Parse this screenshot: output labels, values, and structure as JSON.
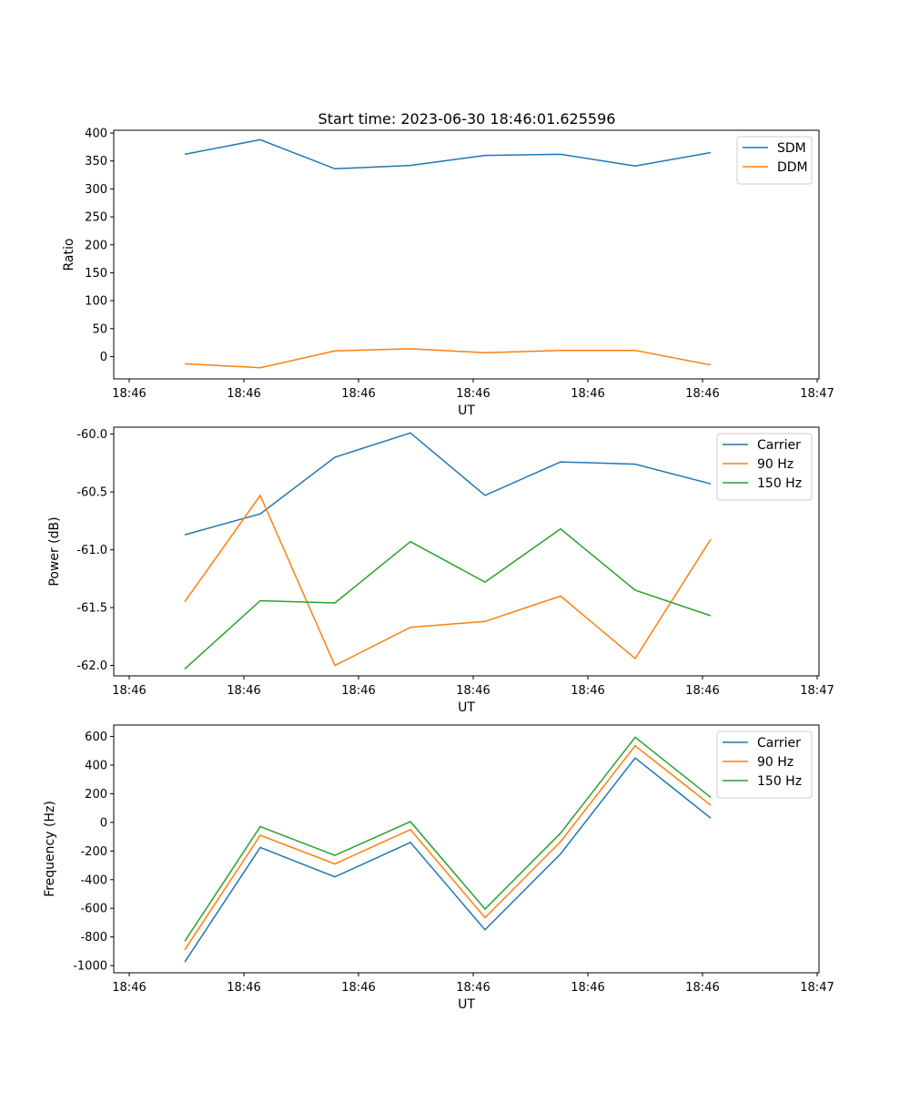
{
  "title": "Start time: 2023-06-30 18:46:01.625596",
  "colors": {
    "blue": "#1f77b4",
    "orange": "#ff7f0e",
    "green": "#2ca02c"
  },
  "chart_data": [
    {
      "type": "line",
      "ylabel": "Ratio",
      "xlabel": "UT",
      "x_ticks": [
        "18:46",
        "18:46",
        "18:46",
        "18:46",
        "18:46",
        "18:46",
        "18:47"
      ],
      "ylim": [
        -40,
        405
      ],
      "y_ticks": [
        0,
        50,
        100,
        150,
        200,
        250,
        300,
        350,
        400
      ],
      "legend": "top-right",
      "series": [
        {
          "name": "SDM",
          "color": "#1f77b4",
          "values": [
            362,
            388,
            336,
            342,
            360,
            362,
            341,
            365
          ]
        },
        {
          "name": "DDM",
          "color": "#ff7f0e",
          "values": [
            -13,
            -20,
            10,
            14,
            7,
            11,
            11,
            -15
          ]
        }
      ]
    },
    {
      "type": "line",
      "ylabel": "Power (dB)",
      "xlabel": "UT",
      "x_ticks": [
        "18:46",
        "18:46",
        "18:46",
        "18:46",
        "18:46",
        "18:46",
        "18:47"
      ],
      "ylim": [
        -62.09,
        -59.94
      ],
      "y_ticks": [
        -60.0,
        -60.5,
        -61.0,
        -61.5,
        -62.0
      ],
      "legend": "top-right",
      "series": [
        {
          "name": "Carrier",
          "color": "#1f77b4",
          "values": [
            -60.87,
            -60.69,
            -60.2,
            -59.99,
            -60.53,
            -60.24,
            -60.26,
            -60.43
          ]
        },
        {
          "name": "90 Hz",
          "color": "#ff7f0e",
          "values": [
            -61.45,
            -60.53,
            -62.0,
            -61.67,
            -61.62,
            -61.4,
            -61.94,
            -60.91
          ]
        },
        {
          "name": "150 Hz",
          "color": "#2ca02c",
          "values": [
            -62.03,
            -61.44,
            -61.46,
            -60.93,
            -61.28,
            -60.82,
            -61.35,
            -61.57
          ]
        }
      ]
    },
    {
      "type": "line",
      "ylabel": "Frequency (Hz)",
      "xlabel": "UT",
      "x_ticks": [
        "18:46",
        "18:46",
        "18:46",
        "18:46",
        "18:46",
        "18:46",
        "18:47"
      ],
      "ylim": [
        -1050,
        680
      ],
      "y_ticks": [
        600,
        400,
        200,
        0,
        -200,
        -400,
        -600,
        -800,
        -1000
      ],
      "legend": "top-right",
      "series": [
        {
          "name": "Carrier",
          "color": "#1f77b4",
          "values": [
            -975,
            -175,
            -380,
            -140,
            -750,
            -220,
            450,
            30
          ]
        },
        {
          "name": "90 Hz",
          "color": "#ff7f0e",
          "values": [
            -890,
            -90,
            -290,
            -50,
            -665,
            -135,
            535,
            120
          ]
        },
        {
          "name": "150 Hz",
          "color": "#2ca02c",
          "values": [
            -830,
            -30,
            -230,
            5,
            -605,
            -75,
            595,
            175
          ]
        }
      ]
    }
  ]
}
